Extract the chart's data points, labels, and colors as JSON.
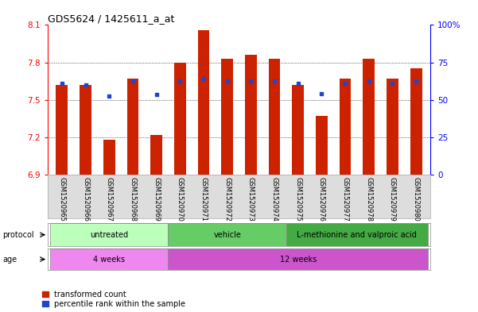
{
  "title": "GDS5624 / 1425611_a_at",
  "samples": [
    "GSM1520965",
    "GSM1520966",
    "GSM1520967",
    "GSM1520968",
    "GSM1520969",
    "GSM1520970",
    "GSM1520971",
    "GSM1520972",
    "GSM1520973",
    "GSM1520974",
    "GSM1520975",
    "GSM1520976",
    "GSM1520977",
    "GSM1520978",
    "GSM1520979",
    "GSM1520980"
  ],
  "red_bar_top": [
    7.62,
    7.62,
    7.18,
    7.67,
    7.22,
    7.8,
    8.06,
    7.83,
    7.86,
    7.83,
    7.62,
    7.37,
    7.67,
    7.83,
    7.67,
    7.75
  ],
  "blue_y": [
    7.63,
    7.62,
    7.53,
    7.65,
    7.54,
    7.65,
    7.67,
    7.65,
    7.65,
    7.65,
    7.63,
    7.55,
    7.63,
    7.65,
    7.63,
    7.65
  ],
  "y_min": 6.9,
  "y_max": 8.1,
  "y_ticks_left": [
    6.9,
    7.2,
    7.5,
    7.8,
    8.1
  ],
  "y_ticks_right_labels": [
    "0",
    "25",
    "50",
    "75",
    "100%"
  ],
  "bar_color": "#cc2200",
  "blue_color": "#2244cc",
  "protocol_groups": [
    {
      "label": "untreated",
      "start": 0,
      "end": 5,
      "color": "#bbffbb"
    },
    {
      "label": "vehicle",
      "start": 5,
      "end": 10,
      "color": "#66cc66"
    },
    {
      "label": "L-methionine and valproic acid",
      "start": 10,
      "end": 16,
      "color": "#44aa44"
    }
  ],
  "age_groups": [
    {
      "label": "4 weeks",
      "start": 0,
      "end": 5,
      "color": "#ee88ee"
    },
    {
      "label": "12 weeks",
      "start": 5,
      "end": 16,
      "color": "#cc55cc"
    }
  ],
  "bar_width": 0.5,
  "legend_red_label": "transformed count",
  "legend_blue_label": "percentile rank within the sample",
  "bg_color": "#dddddd"
}
